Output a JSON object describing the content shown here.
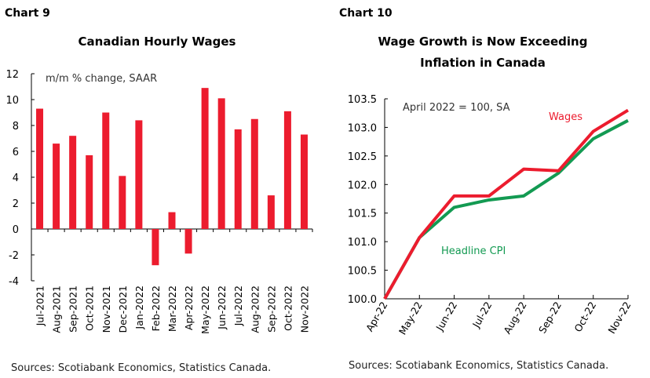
{
  "chart_data": [
    {
      "type": "bar",
      "label": "Chart 9",
      "title": "Canadian Hourly Wages",
      "annotation": "m/m % change, SAAR",
      "categories": [
        "Jul-2021",
        "Aug-2021",
        "Sep-2021",
        "Oct-2021",
        "Nov-2021",
        "Dec-2021",
        "Jan-2022",
        "Feb-2022",
        "Mar-2022",
        "Apr-2022",
        "May-2022",
        "Jun-2022",
        "Jul-2022",
        "Aug-2022",
        "Sep-2022",
        "Oct-2022",
        "Nov-2022"
      ],
      "values": [
        9.3,
        6.6,
        7.2,
        5.7,
        9.0,
        4.1,
        8.4,
        -2.8,
        1.3,
        -1.9,
        10.9,
        10.1,
        7.7,
        8.5,
        2.6,
        9.1,
        7.3
      ],
      "ylim": [
        -4,
        12
      ],
      "yticks": [
        "-4",
        "-2",
        "0",
        "2",
        "4",
        "6",
        "8",
        "10",
        "12"
      ],
      "color": "#ec1c2e",
      "source": "Sources: Scotiabank Economics, Statistics Canada."
    },
    {
      "type": "line",
      "label": "Chart 10",
      "title": [
        "Wage Growth is Now Exceeding",
        "Inflation in Canada"
      ],
      "annotation": "April 2022 = 100, SA",
      "categories": [
        "Apr-22",
        "May-22",
        "Jun-22",
        "Jul-22",
        "Aug-22",
        "Sep-22",
        "Oct-22",
        "Nov-22"
      ],
      "series": [
        {
          "name": "Wages",
          "color": "#ec1c2e",
          "values": [
            100.0,
            101.07,
            101.8,
            101.8,
            102.27,
            102.24,
            102.93,
            103.3
          ]
        },
        {
          "name": "Headline CPI",
          "color": "#139a52",
          "values": [
            100.0,
            101.07,
            101.6,
            101.73,
            101.8,
            102.2,
            102.8,
            103.12
          ]
        }
      ],
      "ylim": [
        100.0,
        103.5
      ],
      "yticks": [
        "100.0",
        "100.5",
        "101.0",
        "101.5",
        "102.0",
        "102.5",
        "103.0",
        "103.5"
      ],
      "source": "Sources: Scotiabank Economics, Statistics Canada."
    }
  ]
}
